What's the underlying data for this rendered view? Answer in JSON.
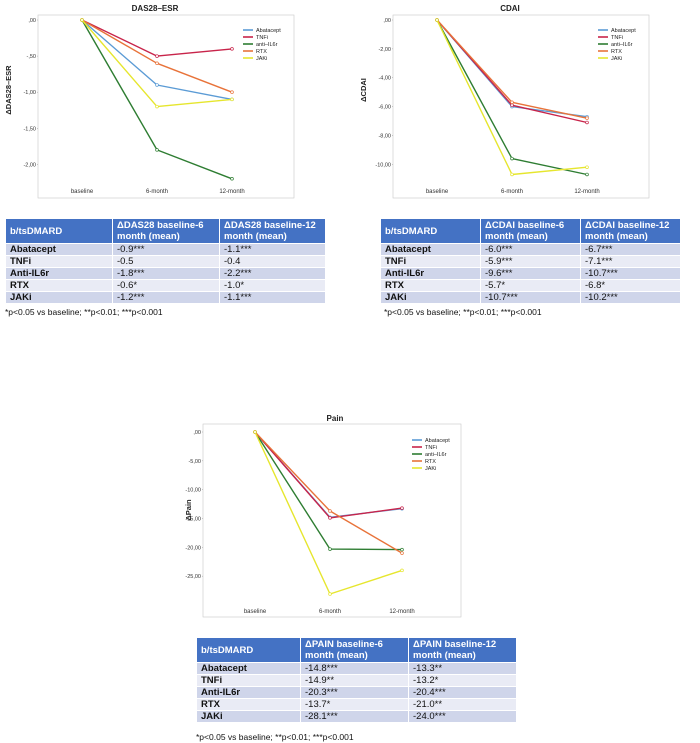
{
  "charts": [
    {
      "id": "das28",
      "title": "DAS28–ESR",
      "ylabel": "ΔDAS28–ESR",
      "categories": [
        "baseline",
        "6-month",
        "12-month"
      ],
      "yticks": [
        ",00",
        "-,50",
        "-1,00",
        "-1,50",
        "-2,00"
      ],
      "legend": [
        "Abatacept",
        "TNFi",
        "anti–IL6r",
        "RTX",
        "JAKi"
      ]
    },
    {
      "id": "cdai",
      "title": "CDAI",
      "ylabel": "ΔCDAI",
      "categories": [
        "baseline",
        "6-month",
        "12-month"
      ],
      "yticks": [
        ",00",
        "-2,00",
        "-4,00",
        "-6,00",
        "-8,00",
        "-10,00"
      ],
      "legend": [
        "Abatacept",
        "TNFi",
        "anti–IL6r",
        "RTX",
        "JAKi"
      ]
    },
    {
      "id": "pain",
      "title": "Pain",
      "ylabel": "ΔPain",
      "categories": [
        "baseline",
        "6-month",
        "12-month"
      ],
      "yticks": [
        ",00",
        "-5,00",
        "-10,00",
        "-15,00",
        "-20,00",
        "-25,00"
      ],
      "legend": [
        "Abatacept",
        "TNFi",
        "anti–IL6r",
        "RTX",
        "JAKi"
      ]
    }
  ],
  "chart_data": [
    {
      "type": "line",
      "title": "DAS28–ESR",
      "ylabel": "ΔDAS28–ESR",
      "xlabel": "",
      "categories": [
        "baseline",
        "6-month",
        "12-month"
      ],
      "ylim": [
        -2.3,
        0
      ],
      "grid": false,
      "legend_position": "top-right",
      "series": [
        {
          "name": "Abatacept",
          "color": "#5b9bd5",
          "values": [
            0,
            -0.9,
            -1.1
          ]
        },
        {
          "name": "TNFi",
          "color": "#c8244a",
          "values": [
            0,
            -0.5,
            -0.4
          ]
        },
        {
          "name": "anti–IL6r",
          "color": "#2e7d32",
          "values": [
            0,
            -1.8,
            -2.2
          ]
        },
        {
          "name": "RTX",
          "color": "#e8733a",
          "values": [
            0,
            -0.6,
            -1.0
          ]
        },
        {
          "name": "JAKi",
          "color": "#e6e62e",
          "values": [
            0,
            -1.2,
            -1.1
          ]
        }
      ]
    },
    {
      "type": "line",
      "title": "CDAI",
      "ylabel": "ΔCDAI",
      "xlabel": "",
      "categories": [
        "baseline",
        "6-month",
        "12-month"
      ],
      "ylim": [
        -11.5,
        0
      ],
      "grid": false,
      "legend_position": "top-right",
      "series": [
        {
          "name": "Abatacept",
          "color": "#5b9bd5",
          "values": [
            0,
            -6.0,
            -6.7
          ]
        },
        {
          "name": "TNFi",
          "color": "#c8244a",
          "values": [
            0,
            -5.9,
            -7.1
          ]
        },
        {
          "name": "anti–IL6r",
          "color": "#2e7d32",
          "values": [
            0,
            -9.6,
            -10.7
          ]
        },
        {
          "name": "RTX",
          "color": "#e8733a",
          "values": [
            0,
            -5.7,
            -6.8
          ]
        },
        {
          "name": "JAKi",
          "color": "#e6e62e",
          "values": [
            0,
            -10.7,
            -10.2
          ]
        }
      ]
    },
    {
      "type": "line",
      "title": "Pain",
      "ylabel": "ΔPain",
      "xlabel": "",
      "categories": [
        "baseline",
        "6-month",
        "12-month"
      ],
      "ylim": [
        -30,
        0
      ],
      "grid": false,
      "legend_position": "top-right",
      "series": [
        {
          "name": "Abatacept",
          "color": "#5b9bd5",
          "values": [
            0,
            -14.8,
            -13.3
          ]
        },
        {
          "name": "TNFi",
          "color": "#c8244a",
          "values": [
            0,
            -14.9,
            -13.2
          ]
        },
        {
          "name": "anti–IL6r",
          "color": "#2e7d32",
          "values": [
            0,
            -20.3,
            -20.4
          ]
        },
        {
          "name": "RTX",
          "color": "#e8733a",
          "values": [
            0,
            -13.7,
            -21.0
          ]
        },
        {
          "name": "JAKi",
          "color": "#e6e62e",
          "values": [
            0,
            -28.1,
            -24.0
          ]
        }
      ]
    }
  ],
  "tables": [
    {
      "headers": [
        "b/tsDMARD",
        "ΔDAS28 baseline-6 month (mean)",
        "ΔDAS28 baseline-12 month (mean)"
      ],
      "rows": [
        [
          "Abatacept",
          "-0.9***",
          "-1.1***"
        ],
        [
          "TNFi",
          "-0.5",
          "-0.4"
        ],
        [
          "Anti-IL6r",
          "-1.8***",
          "-2.2***"
        ],
        [
          "RTX",
          "-0.6*",
          "-1.0*"
        ],
        [
          "JAKi",
          "-1.2***",
          "-1.1***"
        ]
      ],
      "footnote": "*p<0.05 vs baseline; **p<0.01; ***p<0.001"
    },
    {
      "headers": [
        "b/tsDMARD",
        "ΔCDAI baseline-6 month (mean)",
        "ΔCDAI baseline-12 month (mean)"
      ],
      "rows": [
        [
          "Abatacept",
          "-6.0***",
          "-6.7***"
        ],
        [
          "TNFi",
          "-5.9***",
          "-7.1***"
        ],
        [
          "Anti-IL6r",
          "-9.6***",
          "-10.7***"
        ],
        [
          "RTX",
          "-5.7*",
          "-6.8*"
        ],
        [
          "JAKi",
          "-10.7***",
          "-10.2***"
        ]
      ],
      "footnote": "*p<0.05 vs baseline; **p<0.01; ***p<0.001"
    },
    {
      "headers": [
        "b/tsDMARD",
        "ΔPAIN baseline-6 month (mean)",
        "ΔPAIN baseline-12 month (mean)"
      ],
      "rows": [
        [
          "Abatacept",
          "-14.8***",
          "-13.3**"
        ],
        [
          "TNFi",
          "-14.9**",
          "-13.2*"
        ],
        [
          "Anti-IL6r",
          "-20.3***",
          "-20.4***"
        ],
        [
          "RTX",
          "-13.7*",
          "-21.0**"
        ],
        [
          "JAKi",
          "-28.1***",
          "-24.0***"
        ]
      ],
      "footnote": "*p<0.05 vs baseline; **p<0.01; ***p<0.001"
    }
  ]
}
